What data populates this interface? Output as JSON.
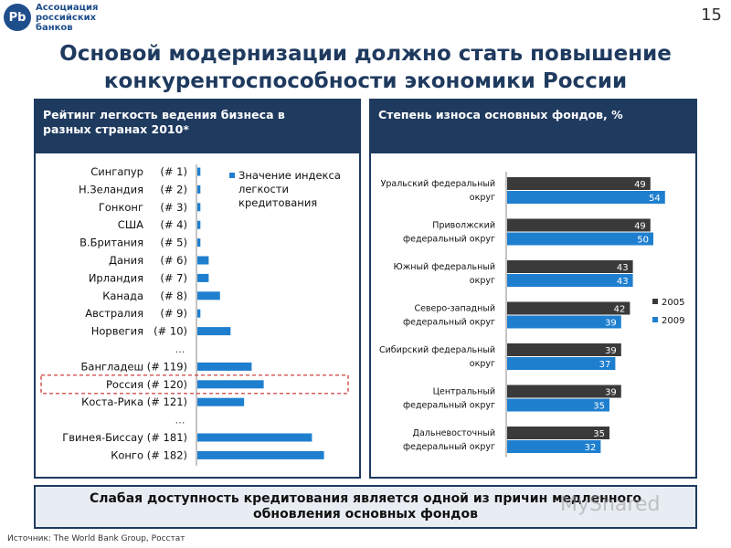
{
  "header": {
    "logo_mark": "Pb",
    "logo_lines": [
      "Ассоциация",
      "российских",
      "банков"
    ],
    "page_number": "15"
  },
  "title_lines": [
    "Основой модернизации должно стать повышение",
    "конкурентоспособности экономики России"
  ],
  "chart_data": [
    {
      "type": "bar",
      "orientation": "horizontal",
      "title": "Рейтинг легкость ведения бизнеса в разных странах 2010*",
      "title_lines": [
        "Рейтинг легкость ведения бизнеса в",
        "разных странах 2010*"
      ],
      "legend": [
        "Значение индекса",
        "легкости",
        "кредитования"
      ],
      "legend_position": "top-right",
      "series_color": "#1f7fcf",
      "highlighted_category": "Россия",
      "categories": [
        {
          "name": "Сингапур",
          "rank": "(# 1)",
          "value": 0.2
        },
        {
          "name": "Н.Зеландия",
          "rank": "(# 2)",
          "value": 0.2
        },
        {
          "name": "Гонконг",
          "rank": "(# 3)",
          "value": 0.2
        },
        {
          "name": "США",
          "rank": "(# 4)",
          "value": 0.2
        },
        {
          "name": "В.Британия",
          "rank": "(# 5)",
          "value": 0.2
        },
        {
          "name": "Дания",
          "rank": "(# 6)",
          "value": 0.75
        },
        {
          "name": "Ирландия",
          "rank": "(# 7)",
          "value": 0.75
        },
        {
          "name": "Канада",
          "rank": "(# 8)",
          "value": 1.5
        },
        {
          "name": "Австралия",
          "rank": "(# 9)",
          "value": 0.2
        },
        {
          "name": "Норвегия",
          "rank": "(# 10)",
          "value": 2.2
        },
        {
          "name": "…",
          "rank": "",
          "value": null
        },
        {
          "name": "Бангладеш",
          "rank": "(# 119)",
          "value": 3.6
        },
        {
          "name": "Россия",
          "rank": "(# 120)",
          "value": 4.4
        },
        {
          "name": "Коста-Рика",
          "rank": "(# 121)",
          "value": 3.1
        },
        {
          "name": "…",
          "rank": "",
          "value": null
        },
        {
          "name": "Гвинея-Биссау",
          "rank": "(# 181)",
          "value": 7.6
        },
        {
          "name": "Конго",
          "rank": "(# 182)",
          "value": 8.4
        }
      ]
    },
    {
      "type": "bar",
      "orientation": "horizontal",
      "title": "Степень износа основных фондов, %",
      "legend_position": "right",
      "categories": [
        [
          "Уральский федеральный",
          "округ"
        ],
        [
          "Приволжский",
          "федеральный округ"
        ],
        [
          "Южный федеральный",
          "округ"
        ],
        [
          "Северо-западный",
          "федеральный округ"
        ],
        [
          "Сибирский федеральный",
          "округ"
        ],
        [
          "Центральный",
          "федеральный округ"
        ],
        [
          "Дальневосточный",
          "федеральный округ"
        ]
      ],
      "series": [
        {
          "name": "2005",
          "color": "#3a3a3a",
          "values": [
            49,
            49,
            43,
            42,
            39,
            39,
            35
          ]
        },
        {
          "name": "2009",
          "color": "#1f7fcf",
          "values": [
            54,
            50,
            43,
            39,
            37,
            35,
            32
          ]
        }
      ]
    }
  ],
  "conclusion_lines": [
    "Слабая доступность кредитования является одной из причин медленного",
    "обновления основных фондов"
  ],
  "source_text": "Источник:   The World Bank Group, Росстат",
  "watermark": "MyShared",
  "colors": {
    "navy": "#1f3a5f",
    "blue": "#1f7fcf",
    "dark": "#3a3a3a",
    "highlight": "#cc2a2a"
  }
}
